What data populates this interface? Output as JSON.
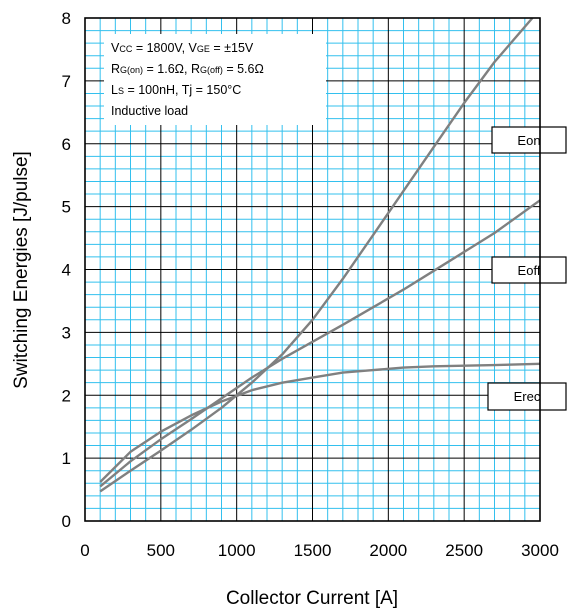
{
  "chart_data": {
    "type": "line",
    "xlabel": "Collector Current [A]",
    "ylabel": "Switching Energies  [J/pulse]",
    "xlim": [
      0,
      3000
    ],
    "ylim": [
      0,
      8
    ],
    "x_ticks": [
      0,
      500,
      1000,
      1500,
      2000,
      2500,
      3000
    ],
    "y_ticks": [
      0,
      1,
      2,
      3,
      4,
      5,
      6,
      7,
      8
    ],
    "x_tick_labels": [
      "0",
      "500",
      "1000",
      "1500",
      "2000",
      "2500",
      "3000"
    ],
    "y_tick_labels": [
      "0",
      "1",
      "2",
      "3",
      "4",
      "5",
      "6",
      "7",
      "8"
    ],
    "grid": true,
    "conditions": [
      {
        "main": "V",
        "sub": "CC",
        "rest": " = 1800V, V",
        "sub2": "GE",
        "rest2": " = ±15V"
      },
      {
        "main": "R",
        "sub": "G(on)",
        "rest": " = 1.6Ω, R",
        "sub2": "G(off)",
        "rest2": " = 5.6Ω"
      },
      {
        "main": "L",
        "sub": "S",
        "rest": " = 100nH, Tj = 150°C",
        "sub2": "",
        "rest2": ""
      },
      {
        "main": "Inductive load",
        "sub": "",
        "rest": "",
        "sub2": "",
        "rest2": ""
      }
    ],
    "series": [
      {
        "name": "Eon",
        "x": [
          100,
          300,
          500,
          700,
          900,
          1100,
          1300,
          1500,
          1700,
          1900,
          2100,
          2300,
          2500,
          2700,
          2950
        ],
        "y": [
          0.47,
          0.8,
          1.12,
          1.45,
          1.8,
          2.2,
          2.65,
          3.2,
          3.85,
          4.55,
          5.25,
          5.95,
          6.65,
          7.3,
          8.0
        ]
      },
      {
        "name": "Eoff",
        "x": [
          100,
          300,
          500,
          700,
          900,
          1100,
          1300,
          1500,
          1700,
          1900,
          2100,
          2300,
          2500,
          2700,
          3000
        ],
        "y": [
          0.55,
          0.95,
          1.3,
          1.62,
          1.95,
          2.28,
          2.58,
          2.85,
          3.12,
          3.4,
          3.68,
          3.98,
          4.28,
          4.58,
          5.1
        ]
      },
      {
        "name": "Erec",
        "x": [
          100,
          300,
          500,
          700,
          900,
          1100,
          1300,
          1500,
          1700,
          1900,
          2100,
          2300,
          2500,
          2700,
          3000
        ],
        "y": [
          0.62,
          1.1,
          1.42,
          1.68,
          1.9,
          2.08,
          2.2,
          2.28,
          2.36,
          2.4,
          2.44,
          2.46,
          2.47,
          2.48,
          2.5
        ]
      }
    ],
    "colors": {
      "grid_minor": "#33c0ee",
      "grid_major": "#000000",
      "line": "#808080"
    }
  }
}
